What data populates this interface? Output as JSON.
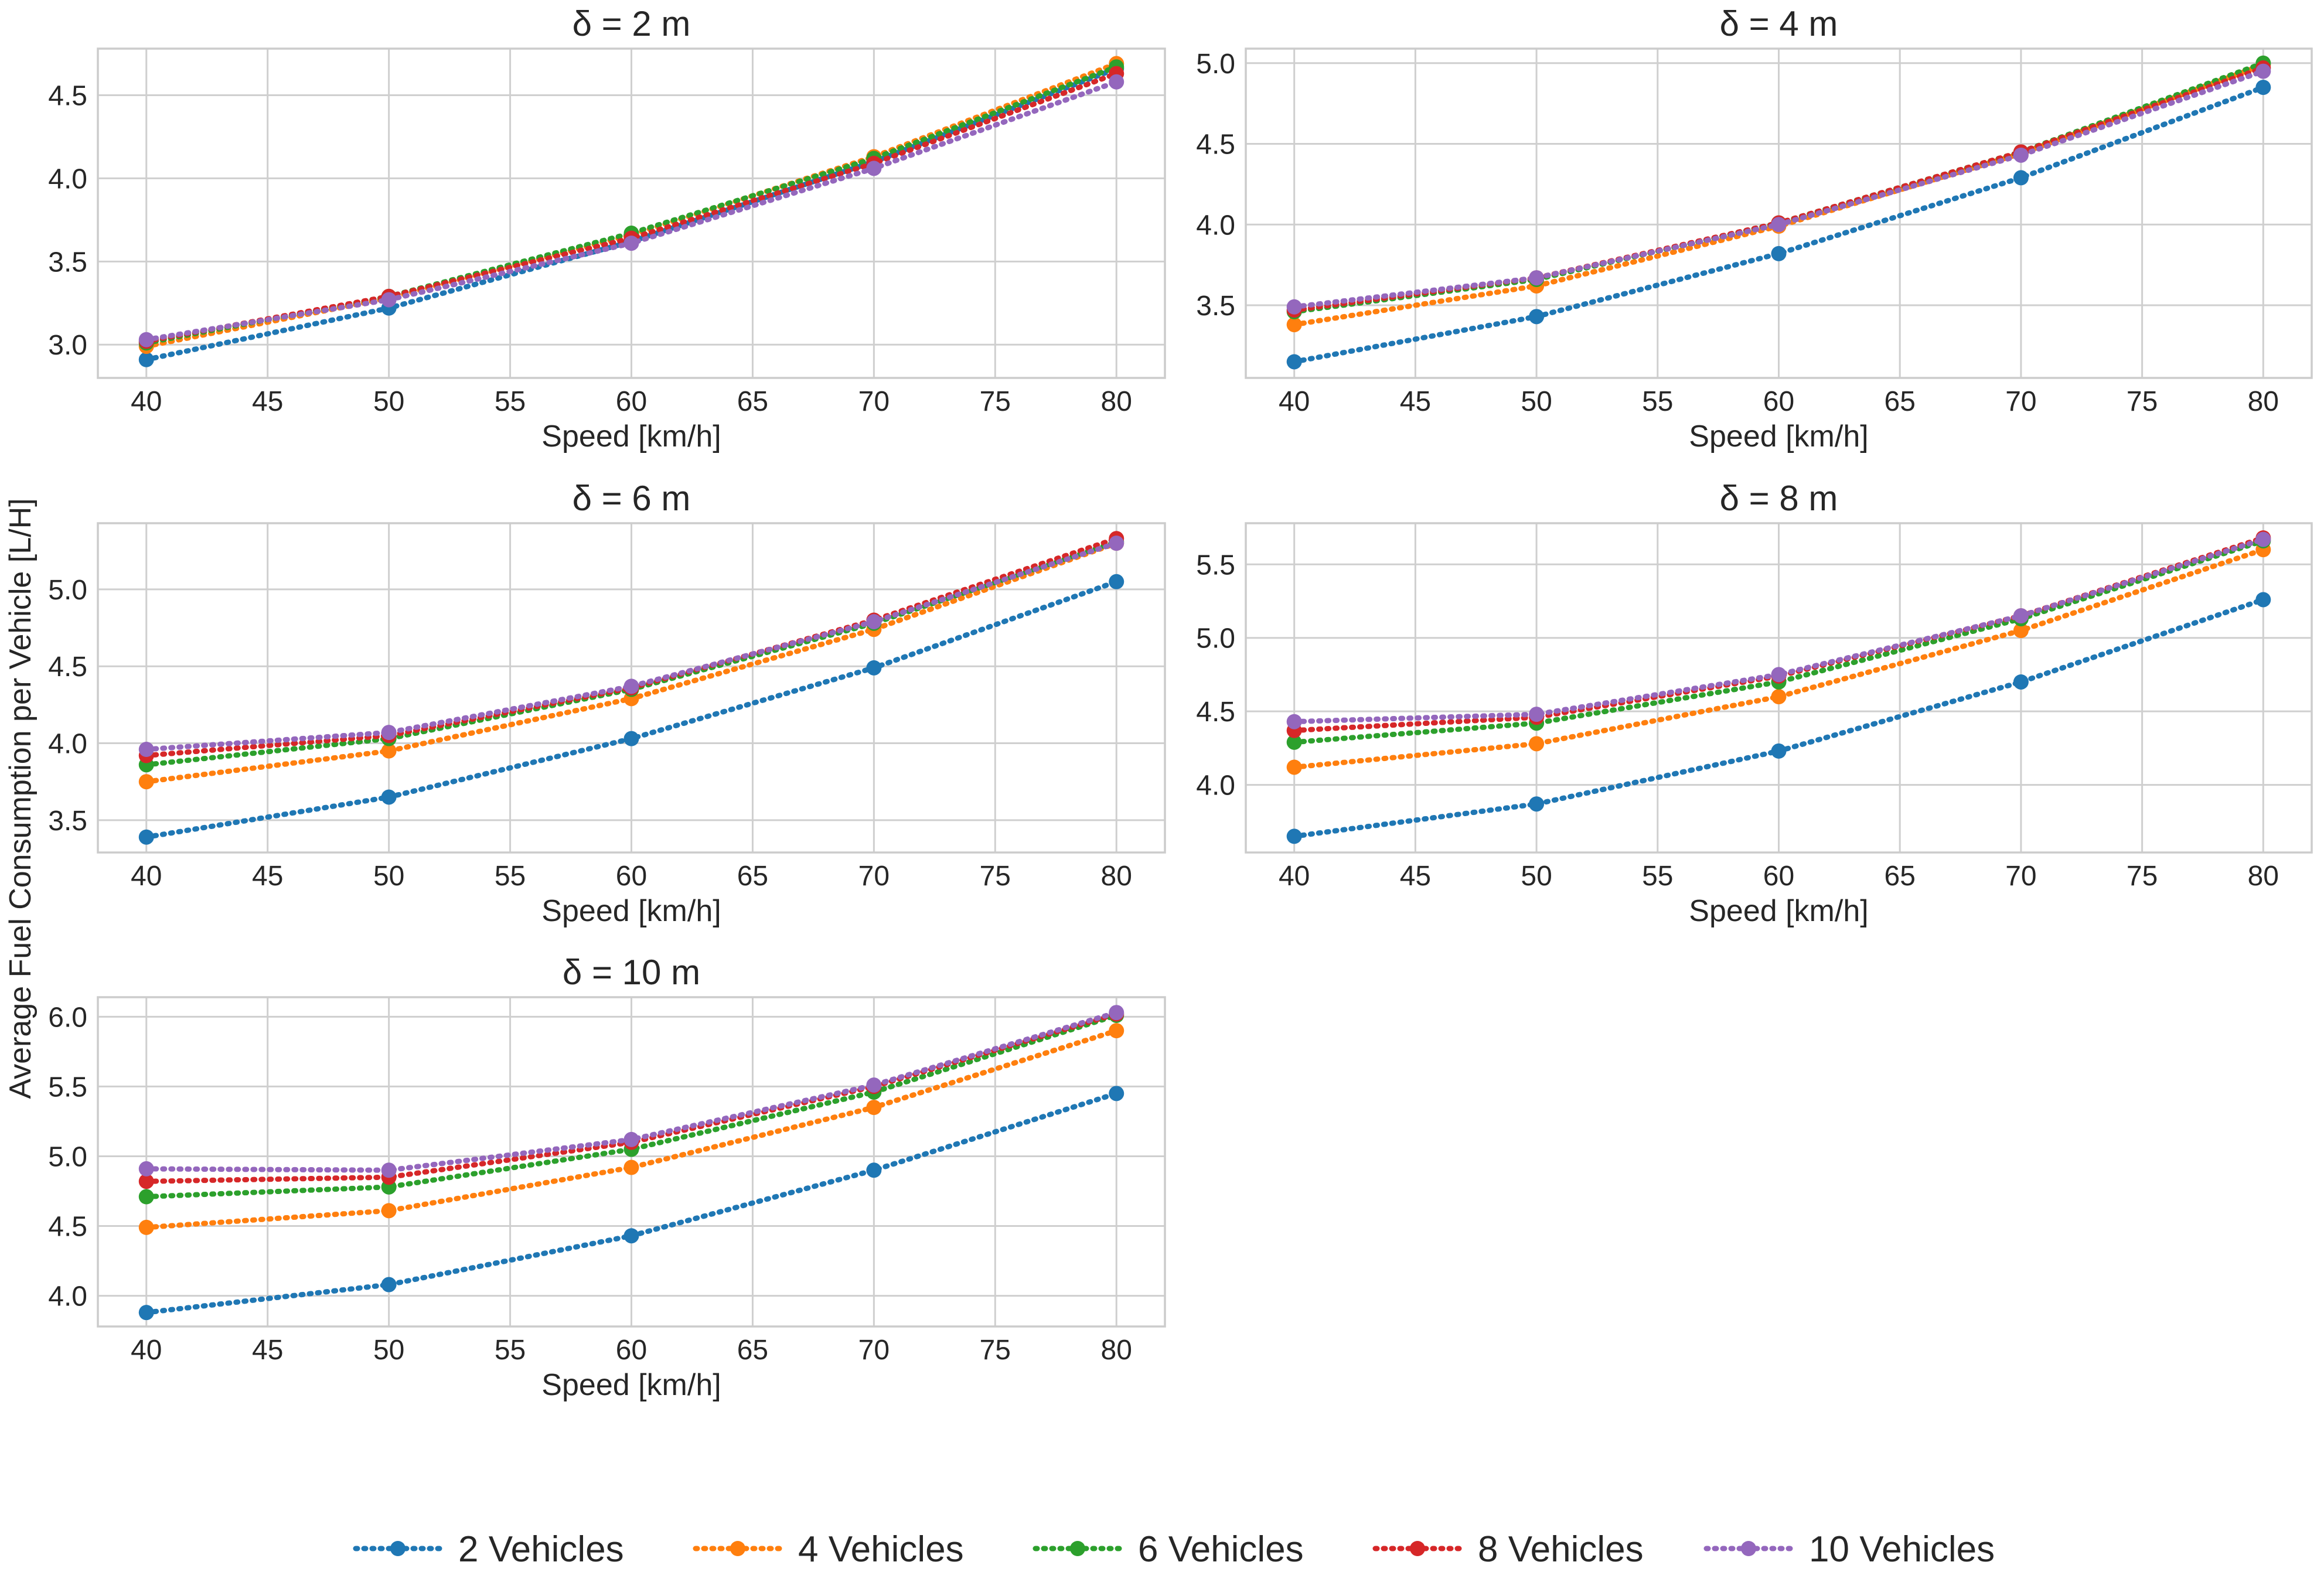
{
  "figure": {
    "ylabel": "Average Fuel Consumption per Vehicle [L/H]"
  },
  "legend": {
    "entries": [
      "2 Vehicles",
      "4 Vehicles",
      "6 Vehicles",
      "8 Vehicles",
      "10 Vehicles"
    ]
  },
  "colors": {
    "2 Vehicles": "#1f77b4",
    "4 Vehicles": "#ff7f0e",
    "6 Vehicles": "#2ca02c",
    "8 Vehicles": "#d62728",
    "10 Vehicles": "#9467bd"
  },
  "chart_data": [
    {
      "type": "line",
      "title": "δ = 2 m",
      "xlabel": "Speed [km/h]",
      "x": [
        40,
        50,
        60,
        70,
        80
      ],
      "xticks": [
        "40",
        "45",
        "50",
        "55",
        "60",
        "65",
        "70",
        "75",
        "80"
      ],
      "yticks": [
        "3.0",
        "3.5",
        "4.0",
        "4.5"
      ],
      "ylim": [
        2.8,
        4.78
      ],
      "grid": true,
      "series": [
        {
          "name": "2 Vehicles",
          "values": [
            2.91,
            3.22,
            3.62,
            4.1,
            4.66
          ]
        },
        {
          "name": "4 Vehicles",
          "values": [
            2.99,
            3.28,
            3.66,
            4.13,
            4.69
          ]
        },
        {
          "name": "6 Vehicles",
          "values": [
            3.01,
            3.29,
            3.67,
            4.12,
            4.67
          ]
        },
        {
          "name": "8 Vehicles",
          "values": [
            3.02,
            3.29,
            3.64,
            4.09,
            4.63
          ]
        },
        {
          "name": "10 Vehicles",
          "values": [
            3.03,
            3.27,
            3.61,
            4.06,
            4.58
          ]
        }
      ]
    },
    {
      "type": "line",
      "title": "δ = 4 m",
      "xlabel": "Speed [km/h]",
      "x": [
        40,
        50,
        60,
        70,
        80
      ],
      "xticks": [
        "40",
        "45",
        "50",
        "55",
        "60",
        "65",
        "70",
        "75",
        "80"
      ],
      "yticks": [
        "3.5",
        "4.0",
        "4.5",
        "5.0"
      ],
      "ylim": [
        3.05,
        5.09
      ],
      "grid": true,
      "series": [
        {
          "name": "2 Vehicles",
          "values": [
            3.15,
            3.43,
            3.82,
            4.29,
            4.85
          ]
        },
        {
          "name": "4 Vehicles",
          "values": [
            3.38,
            3.62,
            3.99,
            4.44,
            4.99
          ]
        },
        {
          "name": "6 Vehicles",
          "values": [
            3.46,
            3.66,
            4.01,
            4.45,
            5.0
          ]
        },
        {
          "name": "8 Vehicles",
          "values": [
            3.47,
            3.67,
            4.01,
            4.45,
            4.97
          ]
        },
        {
          "name": "10 Vehicles",
          "values": [
            3.49,
            3.67,
            4.0,
            4.43,
            4.95
          ]
        }
      ]
    },
    {
      "type": "line",
      "title": "δ = 6 m",
      "xlabel": "Speed [km/h]",
      "x": [
        40,
        50,
        60,
        70,
        80
      ],
      "xticks": [
        "40",
        "45",
        "50",
        "55",
        "60",
        "65",
        "70",
        "75",
        "80"
      ],
      "yticks": [
        "3.5",
        "4.0",
        "4.5",
        "5.0"
      ],
      "ylim": [
        3.29,
        5.43
      ],
      "grid": true,
      "series": [
        {
          "name": "2 Vehicles",
          "values": [
            3.39,
            3.65,
            4.03,
            4.49,
            5.05
          ]
        },
        {
          "name": "4 Vehicles",
          "values": [
            3.75,
            3.95,
            4.29,
            4.74,
            5.3
          ]
        },
        {
          "name": "6 Vehicles",
          "values": [
            3.86,
            4.03,
            4.35,
            4.78,
            5.31
          ]
        },
        {
          "name": "8 Vehicles",
          "values": [
            3.92,
            4.05,
            4.36,
            4.8,
            5.33
          ]
        },
        {
          "name": "10 Vehicles",
          "values": [
            3.96,
            4.07,
            4.37,
            4.79,
            5.3
          ]
        }
      ]
    },
    {
      "type": "line",
      "title": "δ = 8 m",
      "xlabel": "Speed [km/h]",
      "x": [
        40,
        50,
        60,
        70,
        80
      ],
      "xticks": [
        "40",
        "45",
        "50",
        "55",
        "60",
        "65",
        "70",
        "75",
        "80"
      ],
      "yticks": [
        "4.0",
        "4.5",
        "5.0",
        "5.5"
      ],
      "ylim": [
        3.54,
        5.78
      ],
      "grid": true,
      "series": [
        {
          "name": "2 Vehicles",
          "values": [
            3.65,
            3.87,
            4.23,
            4.7,
            5.26
          ]
        },
        {
          "name": "4 Vehicles",
          "values": [
            4.12,
            4.28,
            4.6,
            5.05,
            5.6
          ]
        },
        {
          "name": "6 Vehicles",
          "values": [
            4.29,
            4.42,
            4.7,
            5.13,
            5.66
          ]
        },
        {
          "name": "8 Vehicles",
          "values": [
            4.37,
            4.46,
            4.74,
            5.15,
            5.68
          ]
        },
        {
          "name": "10 Vehicles",
          "values": [
            4.43,
            4.48,
            4.75,
            5.15,
            5.67
          ]
        }
      ]
    },
    {
      "type": "line",
      "title": "δ = 10 m",
      "xlabel": "Speed [km/h]",
      "x": [
        40,
        50,
        60,
        70,
        80
      ],
      "xticks": [
        "40",
        "45",
        "50",
        "55",
        "60",
        "65",
        "70",
        "75",
        "80"
      ],
      "yticks": [
        "4.0",
        "4.5",
        "5.0",
        "5.5",
        "6.0"
      ],
      "ylim": [
        3.78,
        6.14
      ],
      "grid": true,
      "series": [
        {
          "name": "2 Vehicles",
          "values": [
            3.88,
            4.08,
            4.43,
            4.9,
            5.45
          ]
        },
        {
          "name": "4 Vehicles",
          "values": [
            4.49,
            4.61,
            4.92,
            5.35,
            5.9
          ]
        },
        {
          "name": "6 Vehicles",
          "values": [
            4.71,
            4.78,
            5.05,
            5.46,
            6.01
          ]
        },
        {
          "name": "8 Vehicles",
          "values": [
            4.82,
            4.85,
            5.1,
            5.5,
            6.02
          ]
        },
        {
          "name": "10 Vehicles",
          "values": [
            4.91,
            4.9,
            5.12,
            5.51,
            6.03
          ]
        }
      ]
    }
  ]
}
